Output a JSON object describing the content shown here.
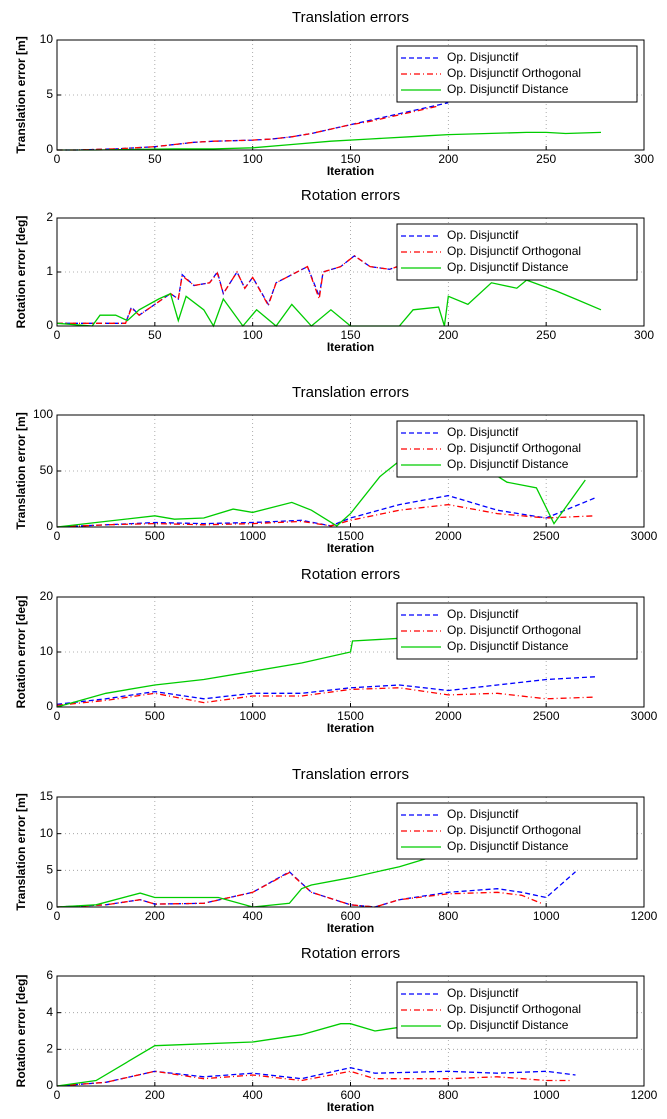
{
  "chart_data": [
    {
      "type": "line",
      "title": "Translation errors",
      "xlabel": "Iteration",
      "ylabel": "Translation error [m]",
      "xlim": [
        0,
        300
      ],
      "xticks": [
        0,
        50,
        100,
        150,
        200,
        250,
        300
      ],
      "ylim": [
        0,
        10
      ],
      "yticks": [
        0,
        5,
        10
      ],
      "grid": true,
      "legend": "upper right",
      "series": [
        {
          "name": "Op. Disjunctif",
          "color": "#0000ff",
          "style": "dashed",
          "x": [
            0,
            10,
            20,
            30,
            40,
            50,
            60,
            70,
            80,
            90,
            100,
            110,
            120,
            130,
            140,
            150,
            160,
            170,
            180,
            190,
            200
          ],
          "values": [
            0,
            0,
            0.05,
            0.1,
            0.2,
            0.3,
            0.5,
            0.7,
            0.8,
            0.85,
            0.9,
            1.0,
            1.2,
            1.5,
            1.9,
            2.3,
            2.7,
            3.1,
            3.5,
            3.9,
            4.3
          ]
        },
        {
          "name": "Op. Disjunctif Orthogonal",
          "color": "#ff0000",
          "style": "dashdot",
          "x": [
            0,
            10,
            20,
            30,
            40,
            50,
            60,
            70,
            80,
            90,
            100,
            110,
            120,
            130,
            140,
            150,
            160,
            170,
            180,
            190,
            195
          ],
          "values": [
            0,
            0,
            0.05,
            0.1,
            0.2,
            0.3,
            0.5,
            0.7,
            0.8,
            0.85,
            0.9,
            1.0,
            1.2,
            1.5,
            1.9,
            2.3,
            2.6,
            3.0,
            3.4,
            3.8,
            4.0
          ]
        },
        {
          "name": "Op. Disjunctif Distance",
          "color": "#00cc00",
          "style": "solid",
          "x": [
            0,
            20,
            40,
            60,
            80,
            100,
            120,
            140,
            160,
            180,
            190,
            200,
            220,
            240,
            250,
            260,
            278
          ],
          "values": [
            0,
            0,
            0.05,
            0.1,
            0.1,
            0.2,
            0.5,
            0.8,
            1.0,
            1.2,
            1.3,
            1.4,
            1.5,
            1.6,
            1.6,
            1.5,
            1.6
          ]
        }
      ]
    },
    {
      "type": "line",
      "title": "Rotation errors",
      "xlabel": "Iteration",
      "ylabel": "Rotation error [deg]",
      "xlim": [
        0,
        300
      ],
      "xticks": [
        0,
        50,
        100,
        150,
        200,
        250,
        300
      ],
      "ylim": [
        0,
        2
      ],
      "yticks": [
        0,
        1,
        2
      ],
      "grid": true,
      "legend": "upper right",
      "series": [
        {
          "name": "Op. Disjunctif",
          "color": "#0000ff",
          "style": "dashed",
          "x": [
            0,
            35,
            38,
            42,
            50,
            58,
            62,
            64,
            70,
            78,
            82,
            85,
            92,
            96,
            100,
            108,
            112,
            120,
            128,
            134,
            136,
            145,
            152,
            160,
            170,
            178,
            185
          ],
          "values": [
            0.05,
            0.05,
            0.35,
            0.2,
            0.4,
            0.6,
            0.5,
            0.95,
            0.75,
            0.8,
            1.0,
            0.6,
            1.0,
            0.7,
            0.9,
            0.4,
            0.8,
            0.95,
            1.1,
            0.55,
            1.0,
            1.1,
            1.3,
            1.1,
            1.05,
            1.15,
            1.15
          ]
        },
        {
          "name": "Op. Disjunctif Orthogonal",
          "color": "#ff0000",
          "style": "dashdot",
          "x": [
            0,
            35,
            38,
            42,
            50,
            58,
            62,
            64,
            70,
            78,
            82,
            85,
            92,
            96,
            100,
            108,
            112,
            120,
            128,
            134,
            136,
            145,
            152,
            160,
            170,
            178,
            185
          ],
          "values": [
            0.05,
            0.05,
            0.33,
            0.2,
            0.4,
            0.6,
            0.5,
            0.93,
            0.75,
            0.8,
            0.98,
            0.6,
            1.0,
            0.7,
            0.9,
            0.38,
            0.8,
            0.95,
            1.1,
            0.5,
            1.0,
            1.1,
            1.3,
            1.1,
            1.05,
            1.15,
            1.15
          ]
        },
        {
          "name": "Op. Disjunctif Distance",
          "color": "#00cc00",
          "style": "solid",
          "x": [
            0,
            18,
            22,
            30,
            36,
            42,
            52,
            58,
            62,
            66,
            75,
            80,
            85,
            95,
            102,
            112,
            120,
            130,
            140,
            150,
            175,
            182,
            195,
            198,
            200,
            210,
            222,
            235,
            240,
            255,
            265,
            278
          ],
          "values": [
            0.05,
            0,
            0.2,
            0.2,
            0.1,
            0.3,
            0.5,
            0.6,
            0.1,
            0.55,
            0.3,
            0,
            0.5,
            0,
            0.3,
            0,
            0.4,
            0,
            0.3,
            0,
            0,
            0.3,
            0.35,
            0,
            0.55,
            0.4,
            0.8,
            0.7,
            0.85,
            0.65,
            0.5,
            0.3
          ]
        }
      ]
    },
    {
      "type": "line",
      "title": "Translation errors",
      "xlabel": "Iteration",
      "ylabel": "Translation error [m]",
      "xlim": [
        0,
        3000
      ],
      "xticks": [
        0,
        500,
        1000,
        1500,
        2000,
        2500,
        3000
      ],
      "ylim": [
        0,
        100
      ],
      "yticks": [
        0,
        50,
        100
      ],
      "grid": true,
      "legend": "upper right",
      "series": [
        {
          "name": "Op. Disjunctif",
          "color": "#0000ff",
          "style": "dashed",
          "x": [
            0,
            250,
            500,
            750,
            1000,
            1250,
            1400,
            1500,
            1750,
            2000,
            2250,
            2500,
            2750
          ],
          "values": [
            0,
            2,
            4,
            3,
            4,
            6,
            1,
            8,
            20,
            28,
            15,
            8,
            26
          ]
        },
        {
          "name": "Op. Disjunctif Orthogonal",
          "color": "#ff0000",
          "style": "dashdot",
          "x": [
            0,
            250,
            500,
            750,
            1000,
            1250,
            1400,
            1500,
            1750,
            2000,
            2250,
            2500,
            2750
          ],
          "values": [
            0,
            2,
            3,
            2,
            3,
            5,
            1,
            6,
            15,
            20,
            12,
            8,
            10
          ]
        },
        {
          "name": "Op. Disjunctif Distance",
          "color": "#00cc00",
          "style": "solid",
          "x": [
            0,
            250,
            500,
            600,
            750,
            900,
            1000,
            1200,
            1300,
            1430,
            1500,
            1650,
            1800,
            1900,
            2000,
            2100,
            2300,
            2450,
            2540,
            2700
          ],
          "values": [
            0,
            5,
            10,
            7,
            8,
            16,
            13,
            22,
            15,
            1,
            12,
            45,
            66,
            70,
            68,
            62,
            40,
            35,
            3,
            42
          ]
        }
      ]
    },
    {
      "type": "line",
      "title": "Rotation errors",
      "xlabel": "Iteration",
      "ylabel": "Rotation error [deg]",
      "xlim": [
        0,
        3000
      ],
      "xticks": [
        0,
        500,
        1000,
        1500,
        2000,
        2500,
        3000
      ],
      "ylim": [
        0,
        20
      ],
      "yticks": [
        0,
        10,
        20
      ],
      "grid": true,
      "legend": "upper right",
      "series": [
        {
          "name": "Op. Disjunctif",
          "color": "#0000ff",
          "style": "dashed",
          "x": [
            0,
            250,
            500,
            750,
            1000,
            1250,
            1500,
            1750,
            2000,
            2250,
            2500,
            2750
          ],
          "values": [
            0.5,
            1.5,
            2.8,
            1.5,
            2.5,
            2.5,
            3.5,
            4,
            3,
            4,
            5,
            5.5
          ]
        },
        {
          "name": "Op. Disjunctif Orthogonal",
          "color": "#ff0000",
          "style": "dashdot",
          "x": [
            0,
            250,
            500,
            750,
            1000,
            1250,
            1500,
            1750,
            2000,
            2250,
            2500,
            2750
          ],
          "values": [
            0.3,
            1.2,
            2.5,
            0.8,
            2,
            2,
            3.2,
            3.5,
            2.2,
            2.5,
            1.5,
            1.8
          ]
        },
        {
          "name": "Op. Disjunctif Distance",
          "color": "#00cc00",
          "style": "solid",
          "x": [
            0,
            250,
            500,
            750,
            1000,
            1250,
            1500,
            1510,
            1750,
            1900
          ],
          "values": [
            0,
            2.5,
            4,
            5,
            6.5,
            8,
            10,
            12,
            12.5,
            14
          ]
        }
      ]
    },
    {
      "type": "line",
      "title": "Translation errors",
      "xlabel": "Iteration",
      "ylabel": "Translation error [m]",
      "xlim": [
        0,
        1200
      ],
      "xticks": [
        0,
        200,
        400,
        600,
        800,
        1000,
        1200
      ],
      "ylim": [
        0,
        15
      ],
      "yticks": [
        0,
        5,
        10,
        15
      ],
      "grid": true,
      "legend": "upper right",
      "series": [
        {
          "name": "Op. Disjunctif",
          "color": "#0000ff",
          "style": "dashed",
          "x": [
            0,
            100,
            170,
            200,
            300,
            400,
            475,
            520,
            600,
            650,
            700,
            800,
            900,
            950,
            1000,
            1060
          ],
          "values": [
            0,
            0.3,
            1,
            0.4,
            0.5,
            2,
            4.8,
            2,
            0.3,
            0,
            1,
            2,
            2.5,
            2,
            1.3,
            4.8
          ]
        },
        {
          "name": "Op. Disjunctif Orthogonal",
          "color": "#ff0000",
          "style": "dashdot",
          "x": [
            0,
            100,
            170,
            200,
            300,
            400,
            475,
            520,
            600,
            650,
            700,
            800,
            900,
            950,
            990
          ],
          "values": [
            0,
            0.3,
            1,
            0.4,
            0.5,
            2,
            4.7,
            2,
            0.3,
            0,
            1,
            1.8,
            2,
            1.6,
            0.5
          ]
        },
        {
          "name": "Op. Disjunctif Distance",
          "color": "#00cc00",
          "style": "solid",
          "x": [
            0,
            80,
            170,
            200,
            330,
            400,
            475,
            500,
            520,
            600,
            700,
            800
          ],
          "values": [
            0,
            0.3,
            1.9,
            1.3,
            1.3,
            0,
            0.5,
            2.5,
            3,
            4,
            5.5,
            7.5
          ]
        }
      ]
    },
    {
      "type": "line",
      "title": "Rotation errors",
      "xlabel": "Iteration",
      "ylabel": "Rotation error [deg]",
      "xlim": [
        0,
        1200
      ],
      "xticks": [
        0,
        200,
        400,
        600,
        800,
        1000,
        1200
      ],
      "ylim": [
        0,
        6
      ],
      "yticks": [
        0,
        2,
        4,
        6
      ],
      "grid": true,
      "legend": "upper right",
      "series": [
        {
          "name": "Op. Disjunctif",
          "color": "#0000ff",
          "style": "dashed",
          "x": [
            0,
            100,
            200,
            300,
            400,
            500,
            600,
            650,
            800,
            900,
            1000,
            1060
          ],
          "values": [
            0,
            0.2,
            0.8,
            0.5,
            0.7,
            0.4,
            1.0,
            0.7,
            0.8,
            0.7,
            0.8,
            0.6
          ]
        },
        {
          "name": "Op. Disjunctif Orthogonal",
          "color": "#ff0000",
          "style": "dashdot",
          "x": [
            0,
            100,
            200,
            300,
            400,
            500,
            600,
            650,
            800,
            900,
            1000,
            1050
          ],
          "values": [
            0,
            0.2,
            0.8,
            0.4,
            0.6,
            0.3,
            0.8,
            0.4,
            0.4,
            0.5,
            0.3,
            0.3
          ]
        },
        {
          "name": "Op. Disjunctif Distance",
          "color": "#00cc00",
          "style": "solid",
          "x": [
            0,
            80,
            200,
            300,
            400,
            500,
            580,
            600,
            650,
            700
          ],
          "values": [
            0,
            0.3,
            2.2,
            2.3,
            2.4,
            2.8,
            3.4,
            3.4,
            3.0,
            3.2
          ]
        }
      ]
    }
  ]
}
